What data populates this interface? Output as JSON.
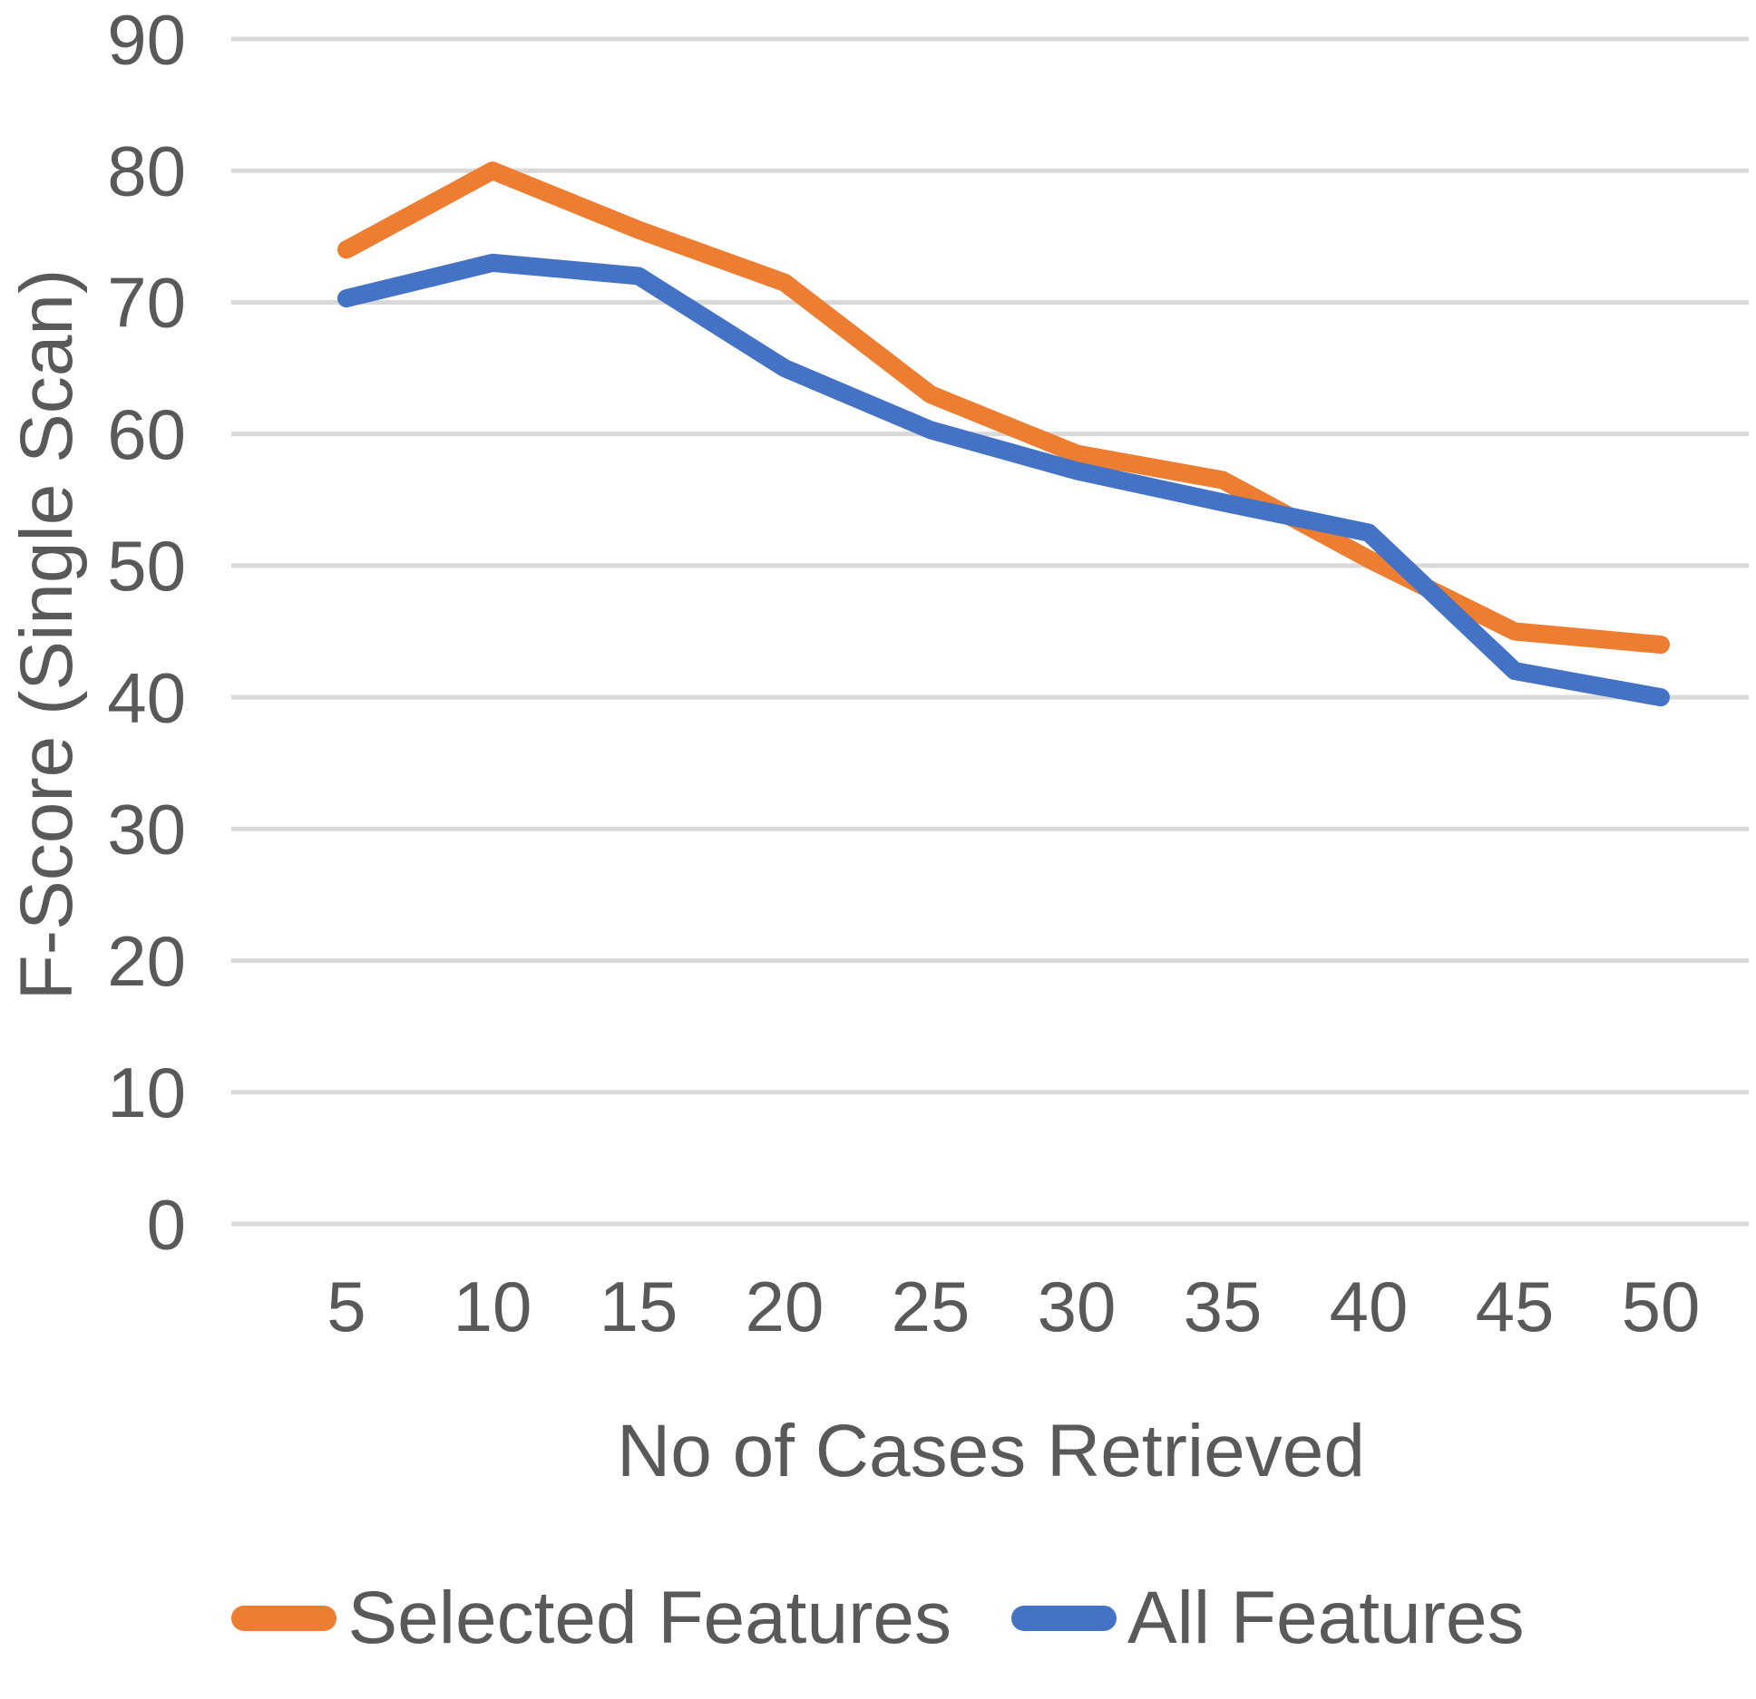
{
  "chart_data": {
    "type": "line",
    "title": "",
    "xlabel": "No of Cases Retrieved",
    "ylabel": "F-Score (Single Scan)",
    "x": [
      5,
      10,
      15,
      20,
      25,
      30,
      35,
      40,
      45,
      50
    ],
    "series": [
      {
        "name": "Selected Features",
        "color": "#ED7D31",
        "values": [
          74,
          80,
          75.5,
          71.5,
          63,
          58.5,
          56.5,
          50.5,
          45,
          44
        ]
      },
      {
        "name": "All Features",
        "color": "#4472C4",
        "values": [
          70.3,
          73,
          72,
          65,
          60.3,
          57.2,
          54.8,
          52.5,
          42,
          40
        ]
      }
    ],
    "ylim": [
      0,
      90
    ],
    "y_ticks": [
      0,
      10,
      20,
      30,
      40,
      50,
      60,
      70,
      80,
      90
    ],
    "grid": true,
    "gridline_color": "#D9D9D9",
    "tick_label_color": "#595959",
    "legend_position": "bottom"
  },
  "legend": {
    "items": [
      {
        "label": "Selected Features",
        "color": "#ED7D31"
      },
      {
        "label": "All Features",
        "color": "#4472C4"
      }
    ]
  }
}
